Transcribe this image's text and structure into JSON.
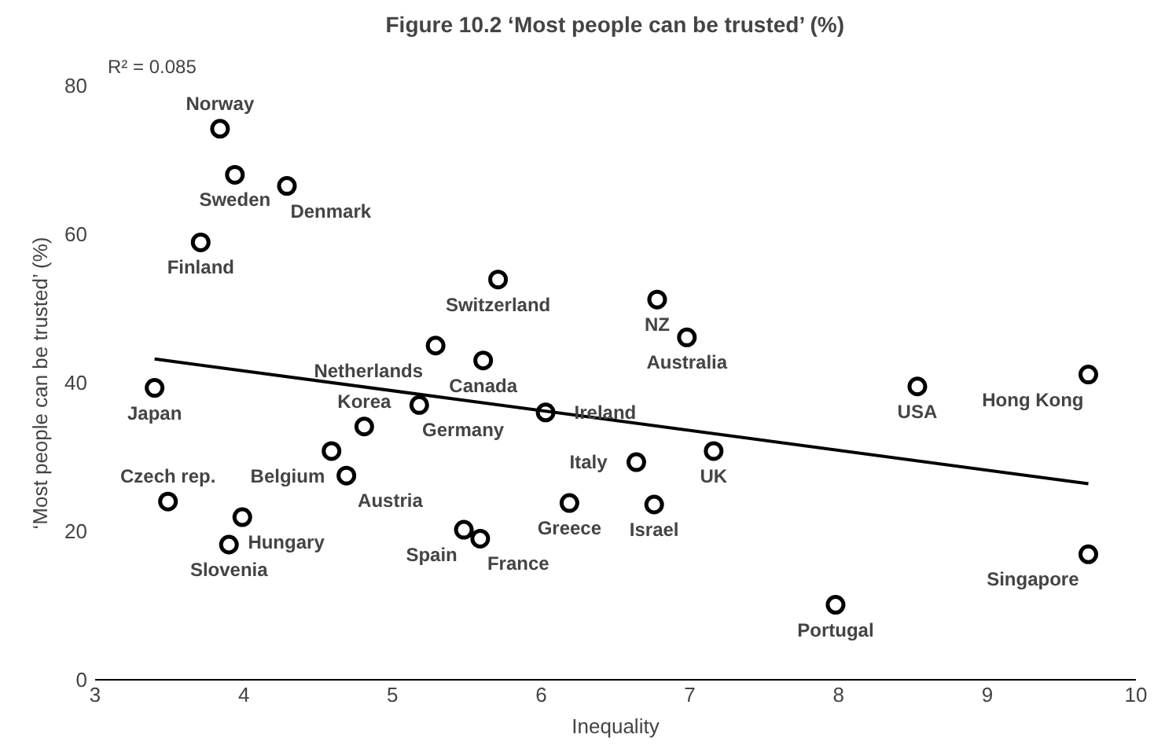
{
  "chart_data": {
    "type": "scatter",
    "title": "Figure 10.2 ‘Most people can be trusted’ (%)",
    "xlabel": "Inequality",
    "ylabel": "‘Most people can be trusted’ (%)",
    "xlim": [
      3,
      10
    ],
    "ylim": [
      0,
      80
    ],
    "xticks": [
      3,
      4,
      5,
      6,
      7,
      8,
      9,
      10
    ],
    "yticks": [
      0,
      20,
      40,
      60,
      80
    ],
    "grid": false,
    "series": [
      {
        "color": "#000000",
        "marker": "circle",
        "x": [
          3.84,
          3.94,
          4.29,
          3.71,
          5.71,
          6.78,
          6.98,
          5.29,
          5.61,
          3.4,
          8.53,
          9.68,
          4.81,
          5.18,
          6.03,
          4.59,
          4.69,
          6.64,
          7.16,
          3.49,
          3.99,
          3.9,
          5.48,
          5.59,
          6.19,
          6.76,
          7.98,
          9.68
        ],
        "values": [
          74.2,
          68.0,
          66.5,
          58.9,
          53.9,
          51.2,
          46.1,
          45.0,
          43.0,
          39.3,
          39.5,
          41.1,
          34.1,
          37.0,
          36.0,
          30.8,
          27.5,
          29.3,
          30.8,
          24.0,
          21.9,
          18.2,
          20.2,
          19.0,
          23.8,
          23.6,
          10.1,
          16.9
        ]
      },
      {
        "type": "line",
        "color": "#000000",
        "x": [
          3.4,
          9.68
        ],
        "values": [
          43.2,
          26.4
        ]
      }
    ],
    "annotations": [
      "R² = 0.085",
      {
        "text": "Norway",
        "x": 3.84,
        "y": 74.2
      },
      {
        "text": "Sweden",
        "x": 3.94,
        "y": 68.0
      },
      {
        "text": "Denmark",
        "x": 4.29,
        "y": 66.5
      },
      {
        "text": "Finland",
        "x": 3.71,
        "y": 58.9
      },
      {
        "text": "Switzerland",
        "x": 5.71,
        "y": 53.9
      },
      {
        "text": "NZ",
        "x": 6.78,
        "y": 51.2
      },
      {
        "text": "Australia",
        "x": 6.98,
        "y": 46.1
      },
      {
        "text": "Netherlands",
        "x": 5.29,
        "y": 45.0
      },
      {
        "text": "Canada",
        "x": 5.61,
        "y": 43.0
      },
      {
        "text": "Japan",
        "x": 3.4,
        "y": 39.3
      },
      {
        "text": "USA",
        "x": 8.53,
        "y": 39.5
      },
      {
        "text": "Hong Kong",
        "x": 9.68,
        "y": 41.1
      },
      {
        "text": "Korea",
        "x": 4.81,
        "y": 34.1
      },
      {
        "text": "Germany",
        "x": 5.18,
        "y": 37.0
      },
      {
        "text": "Ireland",
        "x": 6.03,
        "y": 36.0
      },
      {
        "text": "Belgium",
        "x": 4.59,
        "y": 30.8
      },
      {
        "text": "Austria",
        "x": 4.69,
        "y": 27.5
      },
      {
        "text": "Italy",
        "x": 6.64,
        "y": 29.3
      },
      {
        "text": "UK",
        "x": 7.16,
        "y": 30.8
      },
      {
        "text": "Czech rep.",
        "x": 3.49,
        "y": 24.0
      },
      {
        "text": "Hungary",
        "x": 3.99,
        "y": 21.9
      },
      {
        "text": "Slovenia",
        "x": 3.9,
        "y": 18.2
      },
      {
        "text": "Spain",
        "x": 5.48,
        "y": 20.2
      },
      {
        "text": "France",
        "x": 5.59,
        "y": 19.0
      },
      {
        "text": "Greece",
        "x": 6.19,
        "y": 23.8
      },
      {
        "text": "Israel",
        "x": 6.76,
        "y": 23.6
      },
      {
        "text": "Portugal",
        "x": 7.98,
        "y": 10.1
      },
      {
        "text": "Singapore",
        "x": 9.68,
        "y": 16.9
      }
    ]
  }
}
